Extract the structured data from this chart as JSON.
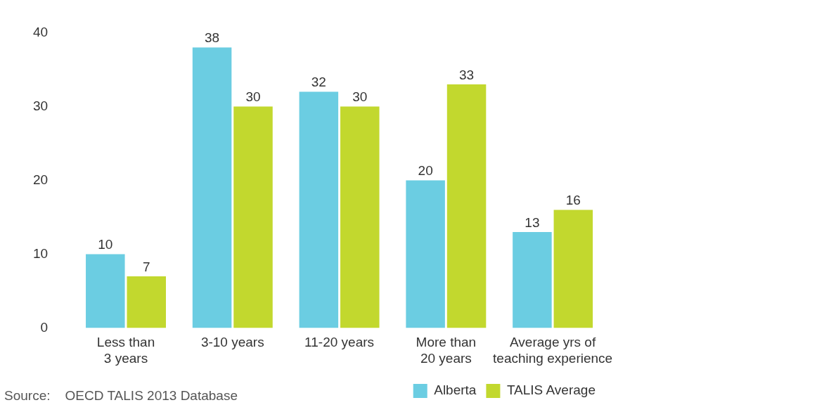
{
  "chart_data": {
    "type": "bar",
    "categories": [
      "Less than 3 years",
      "3-10 years",
      "11-20 years",
      "More than 20 years",
      "Average yrs of teaching experience"
    ],
    "series": [
      {
        "name": "Alberta",
        "color": "#6bcde2",
        "values": [
          10,
          38,
          32,
          20,
          13
        ]
      },
      {
        "name": "TALIS Average",
        "color": "#c2d82e",
        "values": [
          7,
          30,
          30,
          33,
          16
        ]
      }
    ],
    "ylim": [
      0,
      40
    ],
    "yticks": [
      0,
      10,
      20,
      30,
      40
    ],
    "grid": false,
    "legend": "bottom right",
    "data_labels": true,
    "annotations": [
      "Source:    OECD TALIS 2013 Database"
    ]
  }
}
